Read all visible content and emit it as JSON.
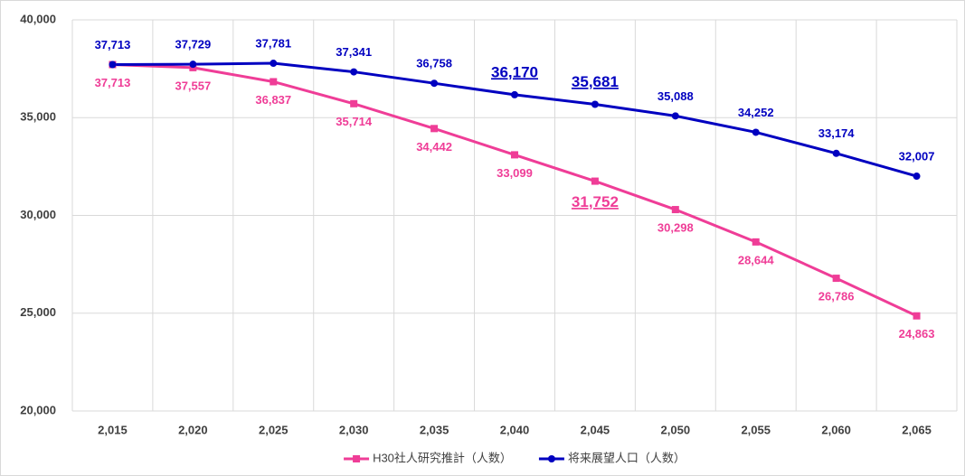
{
  "chart_data": {
    "type": "line",
    "categories": [
      "2,015",
      "2,020",
      "2,025",
      "2,030",
      "2,035",
      "2,040",
      "2,045",
      "2,050",
      "2,055",
      "2,060",
      "2,065"
    ],
    "series": [
      {
        "name": "H30社人研究推計（人数）",
        "color": "#ef3d97",
        "marker": "square",
        "label_side": "below",
        "highlight": [
          6
        ],
        "values": [
          37713,
          37557,
          36837,
          35714,
          34442,
          33099,
          31752,
          30298,
          28644,
          26786,
          24863
        ],
        "value_labels": [
          "37,713",
          "37,557",
          "36,837",
          "35,714",
          "34,442",
          "33,099",
          "31,752",
          "30,298",
          "28,644",
          "26,786",
          "24,863"
        ]
      },
      {
        "name": "将来展望人口（人数）",
        "color": "#0000c0",
        "marker": "circle",
        "label_side": "above",
        "highlight": [
          5,
          6
        ],
        "values": [
          37713,
          37729,
          37781,
          37341,
          36758,
          36170,
          35681,
          35088,
          34252,
          33174,
          32007
        ],
        "value_labels": [
          "37,713",
          "37,729",
          "37,781",
          "37,341",
          "36,758",
          "36,170",
          "35,681",
          "35,088",
          "34,252",
          "33,174",
          "32,007"
        ]
      }
    ],
    "ylim": [
      20000,
      40000
    ],
    "yticks": [
      {
        "value": 20000,
        "label": "20,000"
      },
      {
        "value": 25000,
        "label": "25,000"
      },
      {
        "value": 30000,
        "label": "30,000"
      },
      {
        "value": 35000,
        "label": "35,000"
      },
      {
        "value": 40000,
        "label": "40,000"
      }
    ],
    "grid": true,
    "legend": "bottom"
  }
}
